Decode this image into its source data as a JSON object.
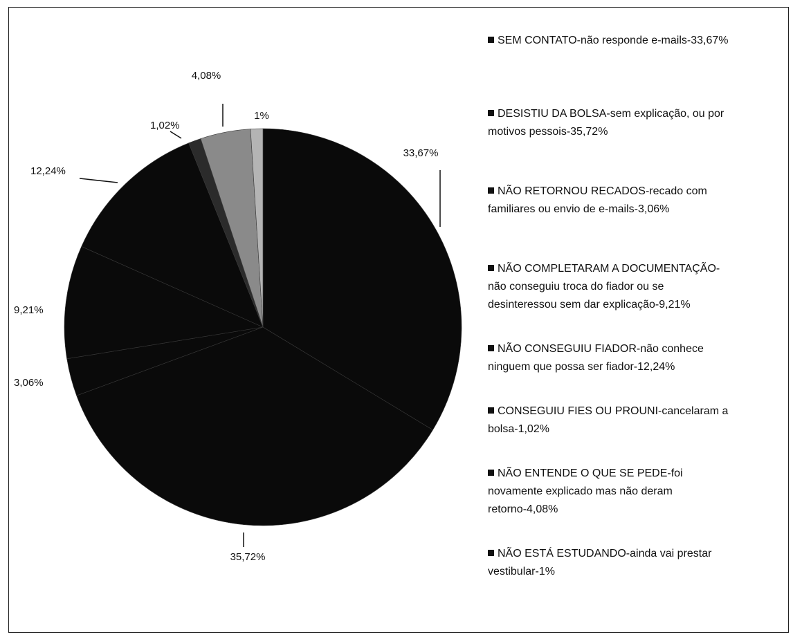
{
  "chart_data": {
    "type": "pie",
    "title": "",
    "slices": [
      {
        "label": "33,67%",
        "value": 33.67,
        "color": "#0a0a0a"
      },
      {
        "label": "35,72%",
        "value": 35.72,
        "color": "#0a0a0a"
      },
      {
        "label": "3,06%",
        "value": 3.06,
        "color": "#0a0a0a"
      },
      {
        "label": "9,21%",
        "value": 9.21,
        "color": "#0a0a0a"
      },
      {
        "label": "12,24%",
        "value": 12.24,
        "color": "#0a0a0a"
      },
      {
        "label": "1,02%",
        "value": 1.02,
        "color": "#2b2b2b"
      },
      {
        "label": "4,08%",
        "value": 4.08,
        "color": "#8a8a8a"
      },
      {
        "label": "1%",
        "value": 1.0,
        "color": "#b4b4b4"
      }
    ],
    "legend_position": "right",
    "legend": [
      {
        "line1": "SEM CONTATO-não responde e-mails-33,67%"
      },
      {
        "line1": "DESISTIU DA BOLSA-sem explicação, ou por",
        "line2": "motivos pessois-35,72%"
      },
      {
        "line1": "NÃO RETORNOU RECADOS-recado com",
        "line2": "familiares ou envio de e-mails-3,06%"
      },
      {
        "line1": "NÃO COMPLETARAM A DOCUMENTAÇÃO-",
        "line2": "não conseguiu troca do fiador ou se",
        "line3": "desinteressou sem dar explicação-9,21%"
      },
      {
        "line1": "NÃO CONSEGUIU FIADOR-não conhece",
        "line2": "ninguem que possa ser fiador-12,24%"
      },
      {
        "line1": "CONSEGUIU FIES OU PROUNI-cancelaram a",
        "line2": "bolsa-1,02%"
      },
      {
        "line1": "NÃO ENTENDE O QUE SE PEDE-foi",
        "line2": "novamente explicado mas não deram",
        "line3": "retorno-4,08%"
      },
      {
        "line1": "NÃO ESTÁ ESTUDANDO-ainda vai prestar",
        "line2": "vestibular-1%"
      }
    ]
  }
}
